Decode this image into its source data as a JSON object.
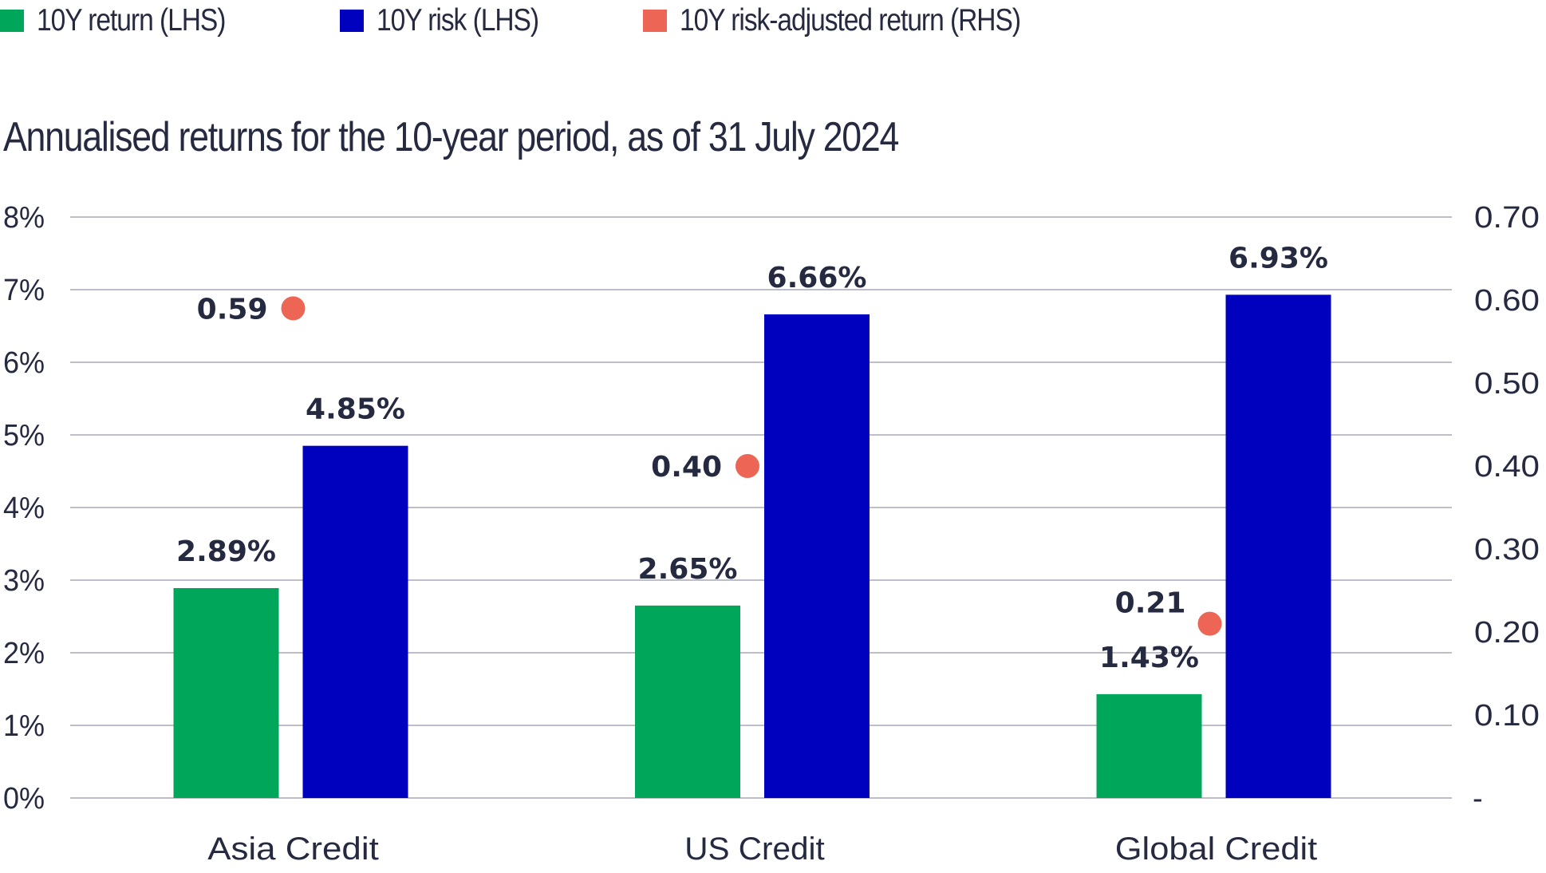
{
  "colors": {
    "return": "#00A65A",
    "risk": "#0000BF",
    "risk_adjusted": "#EC6555",
    "text": "#262A40",
    "grid": "#A9A9B8"
  },
  "chart_data": {
    "type": "bar",
    "title": "Annualised returns for the 10-year period, as of 31 July 2024",
    "categories": [
      "Asia Credit",
      "US Credit",
      "Global Credit"
    ],
    "series": [
      {
        "name": "10Y return (LHS)",
        "axis": "left",
        "kind": "bar",
        "color_key": "return",
        "values": [
          2.89,
          2.65,
          1.43
        ],
        "labels": [
          "2.89%",
          "2.65%",
          "1.43%"
        ]
      },
      {
        "name": "10Y risk (LHS)",
        "axis": "left",
        "kind": "bar",
        "color_key": "risk",
        "values": [
          4.85,
          6.66,
          6.93
        ],
        "labels": [
          "4.85%",
          "6.66%",
          "6.93%"
        ]
      },
      {
        "name": "10Y risk-adjusted return (RHS)",
        "axis": "right",
        "kind": "scatter",
        "color_key": "risk_adjusted",
        "values": [
          0.59,
          0.4,
          0.21
        ],
        "labels": [
          "0.59",
          "0.40",
          "0.21"
        ]
      }
    ],
    "left_axis": {
      "ylim": [
        0,
        8
      ],
      "ticks": [
        0,
        1,
        2,
        3,
        4,
        5,
        6,
        7,
        8
      ],
      "tick_labels": [
        "0%",
        "1%",
        "2%",
        "3%",
        "4%",
        "5%",
        "6%",
        "7%",
        "8%"
      ]
    },
    "right_axis": {
      "ylim": [
        0,
        0.7
      ],
      "ticks": [
        0,
        0.1,
        0.2,
        0.3,
        0.4,
        0.5,
        0.6,
        0.7
      ],
      "tick_labels": [
        "-",
        "0.10",
        "0.20",
        "0.30",
        "0.40",
        "0.50",
        "0.60",
        "0.70"
      ]
    },
    "grid": true,
    "legend_position": "top-left",
    "xlabel": "",
    "ylabel": ""
  }
}
